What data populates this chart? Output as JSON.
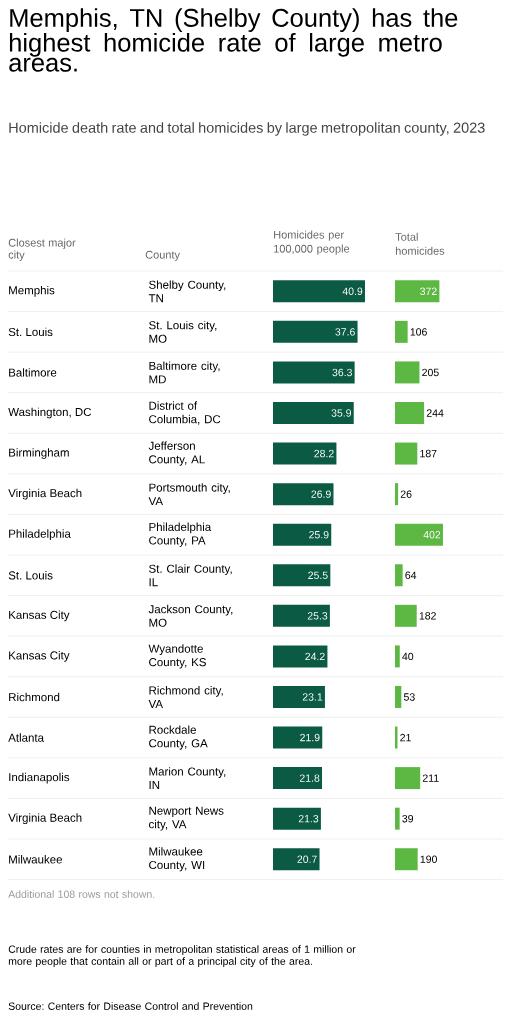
{
  "chart_data": [
    {
      "type": "other",
      "title": "Memphis, TN (Shelby County) has the highest homicide rate of large metro areas.",
      "subtitle": "Homicide death rate and total homicides by large metropolitan county, 2023",
      "annotations": [
        "Additional 108 rows not shown.",
        "Crude rates are for counties in metropolitan statistical areas of 1 million or more people that contain all or part of a principal city of the area.",
        "Source: Centers for Disease Control and Prevention"
      ]
    },
    {
      "type": "other",
      "title": "Closest major city",
      "annotations": [
        "Memphis",
        "St. Louis",
        "Baltimore",
        "Washington, DC",
        "Birmingham",
        "Virginia Beach",
        "Philadelphia",
        "St. Louis",
        "Kansas City",
        "Kansas City",
        "Richmond",
        "Atlanta",
        "Indianapolis",
        "Virginia Beach",
        "Milwaukee"
      ]
    },
    {
      "type": "bar",
      "orientation": "horizontal",
      "title": "Homicides per 100,000 people",
      "ylabel": "County",
      "color": "#0b5a43",
      "data_labels": true,
      "categories": [
        "Shelby County, TN",
        "St. Louis city, MO",
        "Baltimore city, MD",
        "District of Columbia, DC",
        "Jefferson County, AL",
        "Portsmouth city, VA",
        "Philadelphia County, PA",
        "St. Clair County, IL",
        "Jackson County, MO",
        "Wyandotte County, KS",
        "Richmond city, VA",
        "Rockdale County, GA",
        "Marion County, IN",
        "Newport News city, VA",
        "Milwaukee County, WI"
      ],
      "values": [
        40.9,
        37.6,
        36.3,
        35.9,
        28.2,
        26.9,
        25.9,
        25.5,
        25.3,
        24.2,
        23.1,
        21.9,
        21.8,
        21.3,
        20.7
      ]
    },
    {
      "type": "bar",
      "orientation": "horizontal",
      "title": "Total homicides",
      "color": "#5db843",
      "data_labels": true,
      "categories": [
        null,
        null,
        null,
        null,
        null,
        null,
        null,
        null,
        null,
        null,
        null,
        null,
        null,
        null,
        null
      ],
      "values": [
        372,
        106,
        205,
        244,
        187,
        26,
        402,
        64,
        182,
        40,
        53,
        21,
        211,
        39,
        190
      ]
    }
  ]
}
